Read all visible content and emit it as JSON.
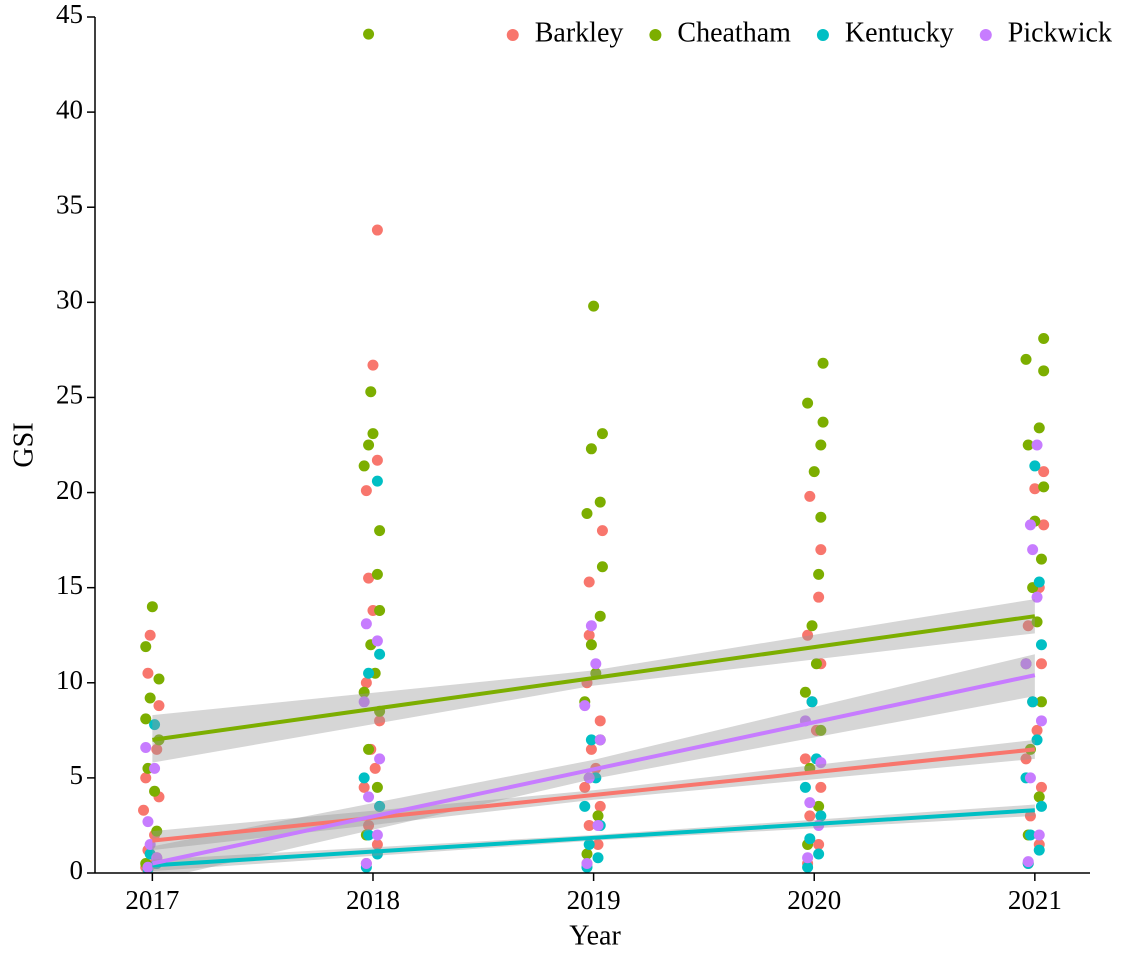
{
  "chart_data": {
    "type": "scatter",
    "xlabel": "Year",
    "ylabel": "GSI",
    "xlim": [
      2016.74,
      2021.25
    ],
    "ylim": [
      0,
      45
    ],
    "xticks": [
      2017,
      2018,
      2019,
      2020,
      2021
    ],
    "yticks": [
      0,
      5,
      10,
      15,
      20,
      25,
      30,
      35,
      40,
      45
    ],
    "legend_position": "top-right",
    "grid": false,
    "series": [
      {
        "name": "Barkley",
        "color": "#F8766D",
        "x": [
          2016.97,
          2017.02,
          2016.98,
          2017.01,
          2016.96,
          2017.03,
          2016.97,
          2017.02,
          2017.03,
          2016.98,
          2016.99,
          2017.01,
          2017.97,
          2018.02,
          2017.98,
          2018.03,
          2017.96,
          2018.01,
          2017.99,
          2018.03,
          2017.97,
          2018.0,
          2017.98,
          2017.97,
          2018.02,
          2018.0,
          2018.02,
          2018.97,
          2019.02,
          2018.98,
          2019.03,
          2018.96,
          2019.01,
          2018.99,
          2019.03,
          2018.97,
          2018.98,
          2018.98,
          2019.04,
          2019.97,
          2020.02,
          2019.98,
          2020.03,
          2019.96,
          2020.01,
          2019.99,
          2020.03,
          2019.97,
          2020.02,
          2020.03,
          2019.98,
          2020.97,
          2021.02,
          2020.98,
          2021.03,
          2020.96,
          2021.01,
          2020.99,
          2021.03,
          2020.97,
          2021.02,
          2021.04,
          2021.0,
          2021.04
        ],
        "values": [
          0.3,
          0.8,
          1.2,
          2.0,
          3.3,
          4.0,
          5.0,
          6.5,
          8.8,
          10.5,
          12.5,
          0.5,
          0.5,
          1.5,
          2.5,
          3.5,
          4.5,
          5.5,
          6.5,
          8.0,
          10.0,
          13.8,
          15.5,
          20.1,
          21.7,
          26.7,
          33.8,
          0.5,
          1.5,
          2.5,
          3.5,
          4.5,
          5.5,
          6.5,
          8.0,
          10.0,
          12.5,
          15.3,
          18.0,
          0.5,
          1.5,
          3.0,
          4.5,
          6.0,
          7.5,
          9.0,
          11.0,
          12.5,
          14.5,
          17.0,
          19.8,
          0.5,
          1.5,
          3.0,
          4.5,
          6.0,
          7.5,
          9.0,
          11.0,
          13.0,
          15.0,
          18.3,
          20.2,
          21.1
        ],
        "fit": {
          "x": [
            2017,
            2019,
            2021
          ],
          "values": [
            1.7,
            4.1,
            6.5
          ],
          "lower": [
            1.2,
            3.85,
            6.0
          ],
          "upper": [
            2.2,
            4.35,
            7.0
          ]
        }
      },
      {
        "name": "Cheatham",
        "color": "#7CAE00",
        "x": [
          2016.97,
          2017.02,
          2017.01,
          2016.98,
          2017.03,
          2016.97,
          2016.99,
          2017.03,
          2016.97,
          2017.0,
          2017.97,
          2018.02,
          2017.98,
          2018.03,
          2017.96,
          2018.01,
          2017.99,
          2018.03,
          2018.02,
          2018.03,
          2017.96,
          2017.98,
          2018.0,
          2017.99,
          2017.98,
          2018.97,
          2019.02,
          2018.98,
          2019.03,
          2018.96,
          2019.01,
          2018.99,
          2019.03,
          2019.04,
          2018.97,
          2019.03,
          2018.99,
          2019.04,
          2019.0,
          2019.97,
          2020.02,
          2019.98,
          2020.03,
          2019.96,
          2020.01,
          2019.99,
          2020.02,
          2020.03,
          2020.0,
          2020.03,
          2020.04,
          2019.97,
          2020.04,
          2020.97,
          2021.02,
          2020.98,
          2021.03,
          2020.96,
          2021.01,
          2020.99,
          2021.03,
          2021.0,
          2021.04,
          2020.97,
          2021.02,
          2021.04,
          2020.96,
          2021.04
        ],
        "values": [
          0.5,
          2.2,
          4.3,
          5.5,
          7.0,
          8.1,
          9.2,
          10.2,
          11.9,
          14.0,
          2.0,
          4.5,
          6.5,
          8.5,
          9.5,
          10.5,
          12.0,
          13.8,
          15.7,
          18.0,
          21.4,
          22.5,
          23.1,
          25.3,
          44.1,
          1.0,
          3.0,
          5.0,
          7.0,
          9.0,
          10.5,
          12.0,
          13.5,
          16.1,
          18.9,
          19.5,
          22.3,
          23.1,
          29.8,
          1.5,
          3.5,
          5.5,
          7.5,
          9.5,
          11.0,
          13.0,
          15.7,
          18.7,
          21.1,
          22.5,
          23.7,
          24.7,
          26.8,
          2.0,
          4.0,
          6.5,
          9.0,
          11.0,
          13.2,
          15.0,
          16.5,
          18.5,
          20.3,
          22.5,
          23.4,
          26.4,
          27.0,
          28.1
        ],
        "fit": {
          "x": [
            2017,
            2019,
            2021
          ],
          "values": [
            7.0,
            10.25,
            13.5
          ],
          "lower": [
            5.8,
            9.85,
            12.6
          ],
          "upper": [
            8.3,
            10.65,
            14.4
          ]
        }
      },
      {
        "name": "Kentucky",
        "color": "#00BFC4",
        "x": [
          2016.98,
          2017.02,
          2016.99,
          2017.01,
          2017.97,
          2018.02,
          2017.98,
          2018.03,
          2017.96,
          2017.98,
          2018.03,
          2018.02,
          2018.97,
          2019.02,
          2018.98,
          2019.03,
          2018.96,
          2019.01,
          2018.99,
          2019.97,
          2020.02,
          2019.98,
          2020.03,
          2019.96,
          2020.01,
          2019.99,
          2020.97,
          2021.02,
          2020.98,
          2021.03,
          2020.96,
          2021.01,
          2020.99,
          2021.03,
          2021.02,
          2021.0
        ],
        "values": [
          0.2,
          0.5,
          1.0,
          7.8,
          0.3,
          1.0,
          2.0,
          3.5,
          5.0,
          10.5,
          11.5,
          20.6,
          0.3,
          0.8,
          1.5,
          2.5,
          3.5,
          5.0,
          7.0,
          0.3,
          1.0,
          1.8,
          3.0,
          4.5,
          6.0,
          9.0,
          0.5,
          1.2,
          2.0,
          3.5,
          5.0,
          7.0,
          9.0,
          12.0,
          15.3,
          21.4
        ],
        "fit": {
          "x": [
            2017,
            2019,
            2021
          ],
          "values": [
            0.4,
            1.85,
            3.3
          ],
          "lower": [
            0.1,
            1.7,
            3.0
          ],
          "upper": [
            0.7,
            2.0,
            3.6
          ]
        }
      },
      {
        "name": "Pickwick",
        "color": "#C77CFF",
        "x": [
          2016.98,
          2017.02,
          2016.99,
          2016.98,
          2017.01,
          2016.97,
          2017.97,
          2018.02,
          2017.98,
          2018.03,
          2017.96,
          2017.97,
          2018.02,
          2018.97,
          2019.02,
          2018.98,
          2019.03,
          2018.96,
          2019.01,
          2018.99,
          2019.97,
          2020.02,
          2019.98,
          2020.03,
          2019.96,
          2020.97,
          2021.02,
          2020.98,
          2021.03,
          2020.96,
          2021.01,
          2020.99,
          2020.98,
          2021.01
        ],
        "values": [
          0.3,
          0.8,
          1.5,
          2.7,
          5.5,
          6.6,
          0.5,
          2.0,
          4.0,
          6.0,
          9.0,
          13.1,
          12.2,
          0.5,
          2.5,
          5.0,
          7.0,
          8.8,
          11.0,
          13.0,
          0.8,
          2.5,
          3.7,
          5.8,
          8.0,
          0.6,
          2.0,
          5.0,
          8.0,
          11.0,
          14.5,
          17.0,
          18.3,
          22.5
        ],
        "fit": {
          "x": [
            2017,
            2019,
            2021
          ],
          "values": [
            0.5,
            5.45,
            10.4
          ],
          "lower": [
            -0.4,
            4.95,
            9.3
          ],
          "upper": [
            1.4,
            5.95,
            11.5
          ]
        }
      }
    ]
  }
}
